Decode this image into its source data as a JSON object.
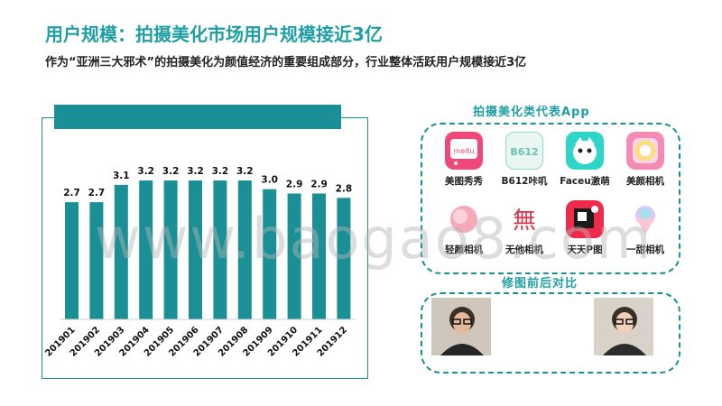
{
  "header": {
    "title": "用户规模：拍摄美化市场用户规模接近3亿",
    "subtitle": "作为“亚洲三大邪术”的拍摄美化为颜值经济的重要组成部分，行业整体活跃用户规模接近3亿"
  },
  "chart_data": {
    "type": "bar",
    "title": "",
    "xlabel": "",
    "ylabel": "",
    "categories": [
      "201901",
      "201902",
      "201903",
      "201904",
      "201905",
      "201906",
      "201907",
      "201908",
      "201909",
      "201910",
      "201911",
      "201912"
    ],
    "values": [
      2.7,
      2.7,
      3.1,
      3.2,
      3.2,
      3.2,
      3.2,
      3.2,
      3.0,
      2.9,
      2.9,
      2.8
    ],
    "value_labels": [
      "2.7",
      "2.7",
      "3.1",
      "3.2",
      "3.2",
      "3.2",
      "3.2",
      "3.2",
      "3.0",
      "2.9",
      "2.9",
      "2.8"
    ],
    "ylim": [
      0,
      3.7
    ],
    "bar_color": "#1a9096",
    "grid": false,
    "legend": "none"
  },
  "apps_section": {
    "label": "拍摄美化类代表App",
    "apps": [
      {
        "name": "美图秀秀",
        "icon": "meitu-icon",
        "color": "#f0487a"
      },
      {
        "name": "B612咔叽",
        "icon": "b612-icon",
        "color": "#8fd7c7"
      },
      {
        "name": "Faceu激萌",
        "icon": "faceu-icon",
        "color": "#2fd6c8"
      },
      {
        "name": "美颜相机",
        "icon": "beauty-camera-icon",
        "color": "#f48bb5"
      },
      {
        "name": "轻颜相机",
        "icon": "light-camera-icon",
        "color": "#f7a8b9"
      },
      {
        "name": "无他相机",
        "icon": "wuta-icon",
        "color": "#d9364b"
      },
      {
        "name": "天天P图",
        "icon": "ttpic-icon",
        "color": "#f02a4a"
      },
      {
        "name": "一甜相机",
        "icon": "yitian-icon",
        "color": "#b8a7f0"
      }
    ]
  },
  "retouch_section": {
    "label": "修图前后对比"
  },
  "watermark": "www.baogao8.com"
}
